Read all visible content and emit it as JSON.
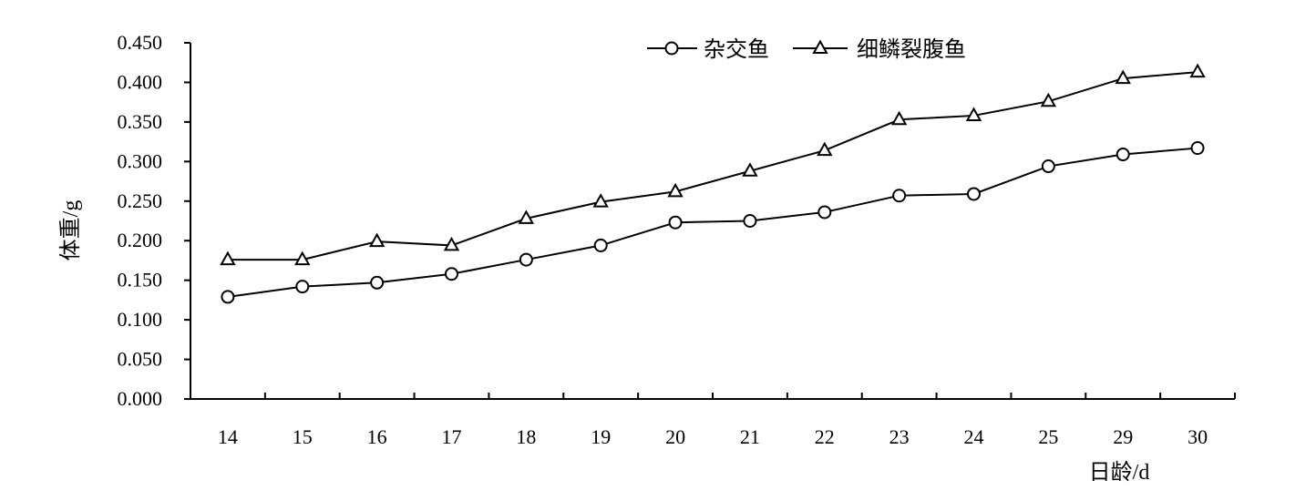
{
  "chart_data": {
    "type": "line",
    "xlabel": "日龄/d",
    "ylabel": "体重/g",
    "categories": [
      "14",
      "15",
      "16",
      "17",
      "18",
      "19",
      "20",
      "21",
      "22",
      "23",
      "24",
      "25",
      "29",
      "30"
    ],
    "ylim": [
      0,
      0.45
    ],
    "yticks": [
      "0.000",
      "0.050",
      "0.100",
      "0.150",
      "0.200",
      "0.250",
      "0.300",
      "0.350",
      "0.400",
      "0.450"
    ],
    "grid": false,
    "legend_position": "top-center",
    "series": [
      {
        "name": "杂交鱼",
        "marker": "circle",
        "color": "#000000",
        "values": [
          0.129,
          0.142,
          0.147,
          0.158,
          0.176,
          0.194,
          0.223,
          0.225,
          0.236,
          0.257,
          0.259,
          0.294,
          0.309,
          0.317
        ]
      },
      {
        "name": "细鳞裂腹鱼",
        "marker": "triangle",
        "color": "#000000",
        "values": [
          0.176,
          0.176,
          0.199,
          0.194,
          0.228,
          0.249,
          0.262,
          0.288,
          0.314,
          0.353,
          0.358,
          0.376,
          0.405,
          0.413
        ]
      }
    ]
  }
}
